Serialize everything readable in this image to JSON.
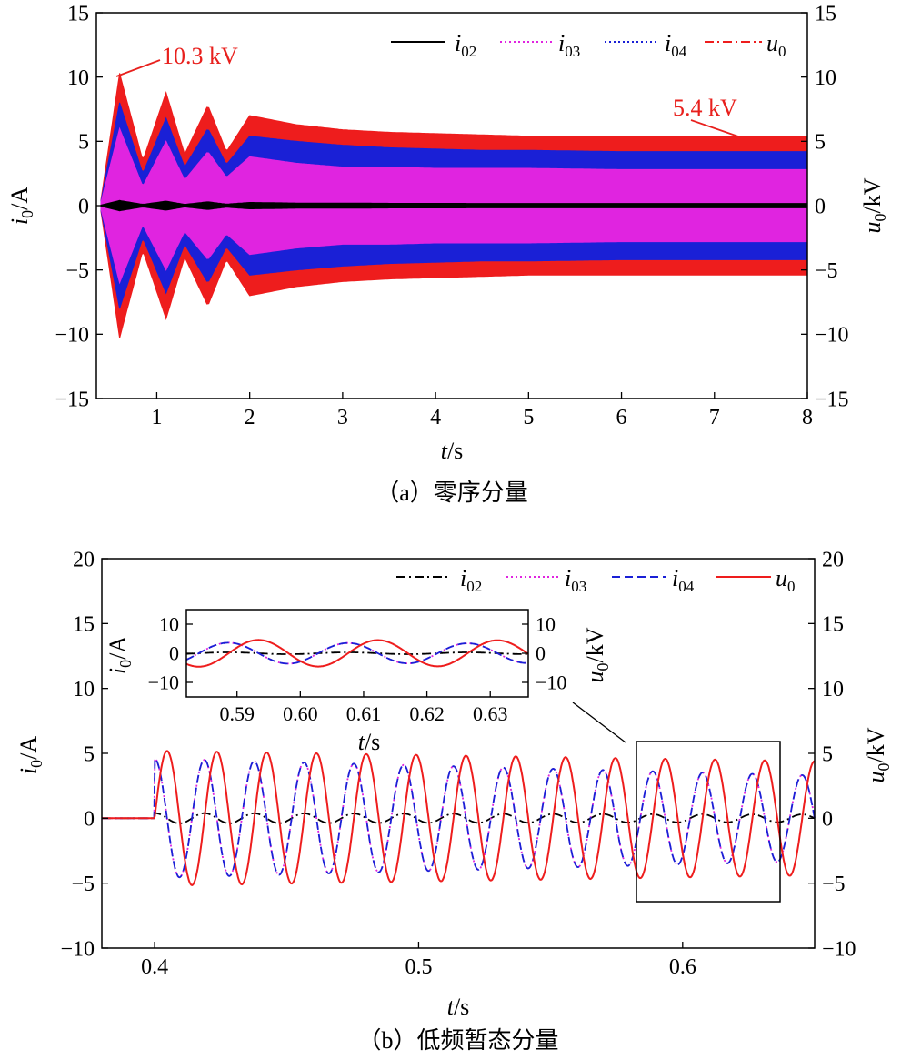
{
  "colors": {
    "i02": "#000000",
    "i03": "#e024e0",
    "i04": "#1a20d6",
    "u0": "#ee1d1d",
    "annotation": "#e8201d"
  },
  "chart_data": [
    {
      "type": "line",
      "caption": "（a）零序分量",
      "xlabel": "t/s",
      "ylabel_left": "i0/A",
      "ylabel_right": "u0/kV",
      "xlim": [
        0.35,
        8
      ],
      "ylim_left": [
        -15,
        15
      ],
      "ylim_right": [
        -15,
        15
      ],
      "x_ticks": [
        "1",
        "2",
        "3",
        "4",
        "5",
        "6",
        "7",
        "8"
      ],
      "y_ticks_left": [
        "15",
        "10",
        "5",
        "0",
        "−5",
        "−10",
        "−15"
      ],
      "y_ticks_right": [
        "15",
        "10",
        "5",
        "0",
        "−5",
        "−10",
        "−15"
      ],
      "grid": false,
      "legend_position": "top-right",
      "legend": [
        {
          "series": "i02",
          "label": "i02",
          "style": "solid"
        },
        {
          "series": "i03",
          "label": "i03",
          "style": "dotted"
        },
        {
          "series": "i04",
          "label": "i04",
          "style": "dotted"
        },
        {
          "series": "u0",
          "label": "u0",
          "style": "dash-dot"
        }
      ],
      "annotations": [
        {
          "text": "10.3 kV",
          "x": 0.6,
          "y": 10.3
        },
        {
          "text": "5.4 kV",
          "x": 7.0,
          "y": 5.4
        }
      ],
      "series_envelope": [
        {
          "name": "u0",
          "x": [
            0.4,
            0.6,
            0.85,
            1.1,
            1.3,
            1.55,
            1.75,
            2.0,
            2.5,
            3.0,
            3.5,
            4.0,
            4.5,
            5.0,
            6.0,
            7.0,
            8.0
          ],
          "upper": [
            0.5,
            10.3,
            3.5,
            8.8,
            4.0,
            7.8,
            4.2,
            7.0,
            6.3,
            5.9,
            5.7,
            5.6,
            5.5,
            5.4,
            5.4,
            5.4,
            5.4
          ]
        },
        {
          "name": "i04",
          "x": [
            0.4,
            0.6,
            0.85,
            1.1,
            1.3,
            1.55,
            1.75,
            2.0,
            2.5,
            3.0,
            3.5,
            4.0,
            4.5,
            5.0,
            6.0,
            7.0,
            8.0
          ],
          "upper": [
            0.4,
            8.0,
            2.5,
            6.8,
            3.0,
            6.0,
            3.2,
            5.4,
            5.0,
            4.7,
            4.5,
            4.4,
            4.3,
            4.3,
            4.2,
            4.2,
            4.2
          ]
        },
        {
          "name": "i03",
          "x": [
            0.4,
            0.6,
            0.85,
            1.1,
            1.3,
            1.55,
            1.75,
            2.0,
            2.5,
            3.0,
            3.5,
            4.0,
            4.5,
            5.0,
            6.0,
            7.0,
            8.0
          ],
          "upper": [
            0.3,
            6.0,
            1.5,
            5.0,
            2.0,
            4.2,
            2.2,
            3.8,
            3.3,
            3.0,
            3.0,
            2.9,
            2.9,
            2.9,
            2.8,
            2.8,
            2.8
          ]
        },
        {
          "name": "i02",
          "x": [
            0.4,
            0.6,
            0.85,
            1.1,
            1.3,
            1.55,
            1.75,
            2.0,
            2.5,
            3.0,
            3.5,
            4.0,
            4.5,
            5.0,
            6.0,
            7.0,
            8.0
          ],
          "upper": [
            0.05,
            0.4,
            0.1,
            0.35,
            0.1,
            0.3,
            0.12,
            0.25,
            0.2,
            0.2,
            0.18,
            0.18,
            0.17,
            0.17,
            0.17,
            0.17,
            0.17
          ]
        }
      ]
    },
    {
      "type": "line",
      "caption": "（b）低频暂态分量",
      "xlabel": "t/s",
      "ylabel_left": "i0/A",
      "ylabel_right": "u0/kV",
      "xlim": [
        0.38,
        0.65
      ],
      "ylim_left": [
        -10,
        20
      ],
      "ylim_right": [
        -10,
        20
      ],
      "x_ticks": [
        "0.4",
        "0.5",
        "0.6"
      ],
      "y_ticks_left": [
        "20",
        "15",
        "10",
        "5",
        "0",
        "−5",
        "−10"
      ],
      "y_ticks_right": [
        "20",
        "15",
        "10",
        "5",
        "0",
        "−5",
        "−10"
      ],
      "grid": false,
      "legend_position": "top-right",
      "legend": [
        {
          "series": "i02",
          "label": "i02",
          "style": "dash-dot"
        },
        {
          "series": "i03",
          "label": "i03",
          "style": "dotted"
        },
        {
          "series": "i04",
          "label": "i04",
          "style": "dashed"
        },
        {
          "series": "u0",
          "label": "u0",
          "style": "solid"
        }
      ],
      "series": [
        {
          "name": "u0",
          "t_start": 0.4,
          "freq_hz": 53,
          "amplitude": [
            5.2,
            4.4
          ],
          "phase": "starts upward"
        },
        {
          "name": "i04",
          "t_start": 0.4,
          "freq_hz": 53,
          "amplitude": [
            4.6,
            3.3
          ],
          "phase": "leads u0 by a quarter period"
        },
        {
          "name": "i03",
          "t_start": 0.4,
          "freq_hz": 53,
          "amplitude": [
            4.6,
            3.3
          ],
          "phase": "overlaps i04"
        },
        {
          "name": "i02",
          "t_start": 0.4,
          "freq_hz": 53,
          "amplitude": [
            0.4,
            0.3
          ],
          "phase": "in phase with i04"
        }
      ],
      "inset": {
        "xlabel": "t/s",
        "ylabel_left": "i0/A",
        "ylabel_right": "u0/kV",
        "xlim": [
          0.582,
          0.636
        ],
        "ylim": [
          -15,
          15
        ],
        "x_ticks": [
          "0.59",
          "0.60",
          "0.61",
          "0.62",
          "0.63"
        ],
        "y_ticks_left": [
          "10",
          "0",
          "−10"
        ],
        "y_ticks_right": [
          "10",
          "0",
          "−10"
        ],
        "zoom_box_x": [
          0.582,
          0.636
        ],
        "zoom_box_y": [
          -6.5,
          6
        ]
      }
    }
  ]
}
